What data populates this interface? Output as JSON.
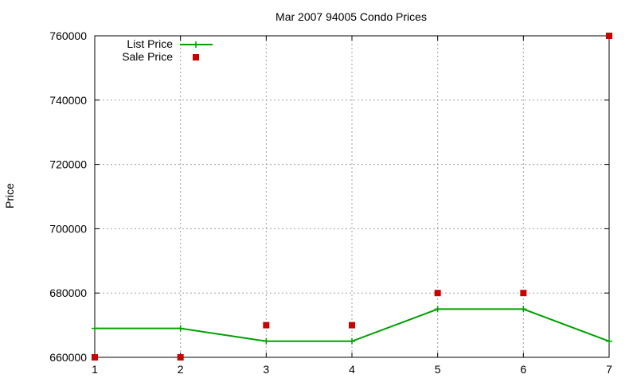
{
  "chart_data": {
    "type": "line",
    "title": "Mar 2007 94005 Condo Prices",
    "xlabel": "",
    "ylabel": "Price",
    "x": [
      1,
      2,
      3,
      4,
      5,
      6,
      7
    ],
    "x_ticks": [
      "1",
      "2",
      "3",
      "4",
      "5",
      "6",
      "7"
    ],
    "y_ticks": [
      "660000",
      "680000",
      "700000",
      "720000",
      "740000",
      "760000"
    ],
    "xlim": [
      1,
      7
    ],
    "ylim": [
      660000,
      760000
    ],
    "grid": true,
    "legend_position": "top-left",
    "series": [
      {
        "name": "List Price",
        "style": "line-with-plus-markers",
        "color": "#00a000",
        "values": [
          669000,
          669000,
          665000,
          665000,
          675000,
          675000,
          665000
        ]
      },
      {
        "name": "Sale Price",
        "style": "square-markers",
        "color": "#cc0000",
        "values": [
          660000,
          660000,
          670000,
          670000,
          680000,
          680000,
          760000
        ]
      }
    ]
  }
}
